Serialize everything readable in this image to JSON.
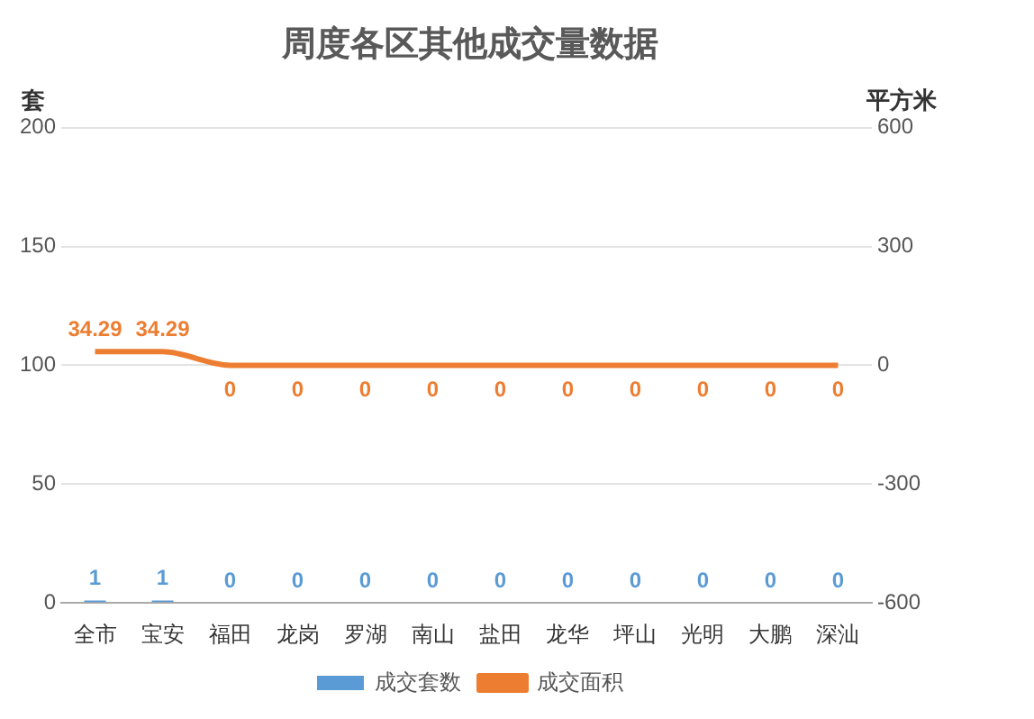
{
  "chart_data": {
    "type": "bar",
    "title": "周度各区其他成交量数据",
    "ylabel": "套",
    "y2label": "平方米",
    "categories": [
      "全市",
      "宝安",
      "福田",
      "龙岗",
      "罗湖",
      "南山",
      "盐田",
      "龙华",
      "坪山",
      "光明",
      "大鹏",
      "深汕"
    ],
    "series": [
      {
        "name": "成交套数",
        "color": "#5b9bd5",
        "values": [
          1,
          1,
          0,
          0,
          0,
          0,
          0,
          0,
          0,
          0,
          0,
          0
        ]
      },
      {
        "name": "成交面积",
        "type": "line",
        "axis": "y2",
        "color": "#ed7d31",
        "values": [
          34.29,
          34.29,
          0,
          0,
          0,
          0,
          0,
          0,
          0,
          0,
          0,
          0
        ]
      }
    ],
    "ylim": [
      0,
      200
    ],
    "yticks": [
      0,
      50,
      100,
      150,
      200
    ],
    "y2lim": [
      -600,
      600
    ],
    "y2ticks": [
      -600,
      -300,
      0,
      300,
      600
    ],
    "grid": "y",
    "legend": "bottom",
    "data_labels": true,
    "marker": "none",
    "line_style": "solid"
  }
}
